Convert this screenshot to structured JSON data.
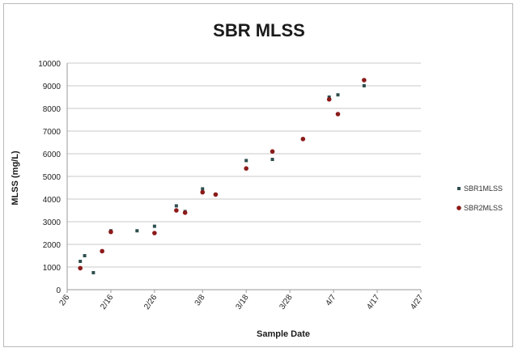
{
  "chart_data": {
    "type": "scatter",
    "title": "SBR MLSS",
    "xlabel": "Sample Date",
    "ylabel": "MLSS (mg/L)",
    "ylim": [
      0,
      10000
    ],
    "yticks": [
      0,
      1000,
      2000,
      3000,
      4000,
      5000,
      6000,
      7000,
      8000,
      9000,
      10000
    ],
    "xlim": [
      "2/6",
      "4/27"
    ],
    "xticks": [
      "2/6",
      "2/16",
      "2/26",
      "3/8",
      "3/18",
      "3/28",
      "4/7",
      "4/17",
      "4/27"
    ],
    "grid": true,
    "legend_position": "right",
    "series": [
      {
        "name": "SBR1MLSS",
        "color": "#2f4f4f",
        "points": [
          {
            "x": "2/9",
            "y": 1250
          },
          {
            "x": "2/10",
            "y": 1500
          },
          {
            "x": "2/12",
            "y": 750
          },
          {
            "x": "2/14",
            "y": 1700
          },
          {
            "x": "2/16",
            "y": 2600
          },
          {
            "x": "2/22",
            "y": 2600
          },
          {
            "x": "2/26",
            "y": 2800
          },
          {
            "x": "3/2",
            "y": 3700
          },
          {
            "x": "3/4",
            "y": 3450
          },
          {
            "x": "3/8",
            "y": 4450
          },
          {
            "x": "3/11",
            "y": 4200
          },
          {
            "x": "3/18",
            "y": 5700
          },
          {
            "x": "3/24",
            "y": 5750
          },
          {
            "x": "3/31",
            "y": 6650
          },
          {
            "x": "4/6",
            "y": 8500
          },
          {
            "x": "4/8",
            "y": 8600
          },
          {
            "x": "4/14",
            "y": 9000
          }
        ]
      },
      {
        "name": "SBR2MLSS",
        "color": "#8b1a1a",
        "points": [
          {
            "x": "2/9",
            "y": 950
          },
          {
            "x": "2/14",
            "y": 1700
          },
          {
            "x": "2/16",
            "y": 2550
          },
          {
            "x": "2/26",
            "y": 2500
          },
          {
            "x": "3/2",
            "y": 3500
          },
          {
            "x": "3/4",
            "y": 3400
          },
          {
            "x": "3/8",
            "y": 4300
          },
          {
            "x": "3/11",
            "y": 4200
          },
          {
            "x": "3/18",
            "y": 5350
          },
          {
            "x": "3/24",
            "y": 6100
          },
          {
            "x": "3/31",
            "y": 6650
          },
          {
            "x": "4/6",
            "y": 8400
          },
          {
            "x": "4/8",
            "y": 7750
          },
          {
            "x": "4/14",
            "y": 9250
          }
        ]
      }
    ]
  }
}
